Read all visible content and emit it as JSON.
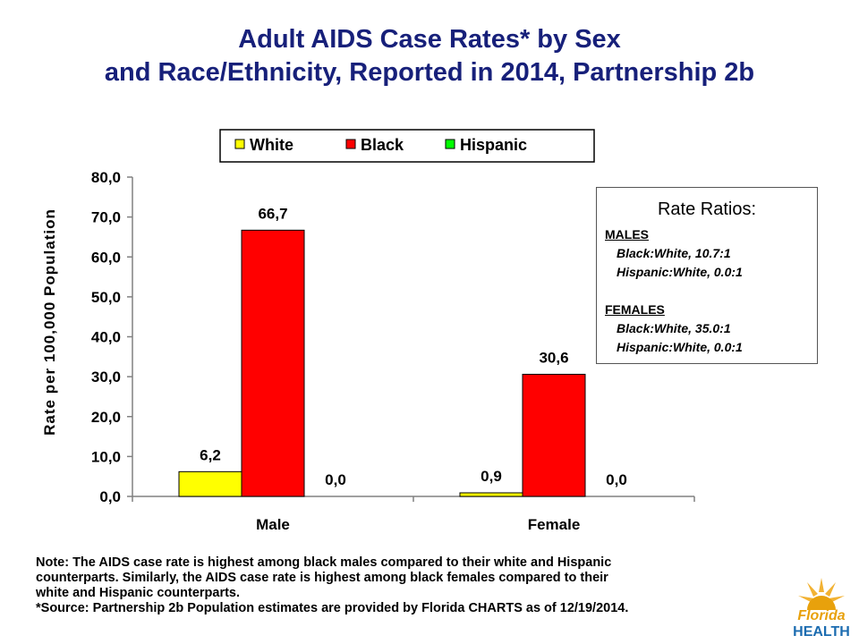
{
  "title": {
    "line1": "Adult AIDS Case Rates* by Sex",
    "line2": "and Race/Ethnicity, Reported in 2014, Partnership 2b"
  },
  "chart_data": {
    "type": "bar",
    "categories": [
      "Male",
      "Female"
    ],
    "series": [
      {
        "name": "White",
        "values": [
          6.2,
          0.9
        ],
        "labels": [
          "6,2",
          "0,9"
        ],
        "color": "#ffff00"
      },
      {
        "name": "Black",
        "values": [
          66.7,
          30.6
        ],
        "labels": [
          "66,7",
          "30,6"
        ],
        "color": "#ff0000"
      },
      {
        "name": "Hispanic",
        "values": [
          0.0,
          0.0
        ],
        "labels": [
          "0,0",
          "0,0"
        ],
        "color": "#00ff00"
      }
    ],
    "ylabel": "Rate per 100,000 Population",
    "xlabel": "",
    "ylim": [
      0,
      80
    ],
    "yticks": [
      0,
      10,
      20,
      30,
      40,
      50,
      60,
      70,
      80
    ],
    "ytick_labels": [
      "0,0",
      "10,0",
      "20,0",
      "30,0",
      "40,0",
      "50,0",
      "60,0",
      "70,0",
      "80,0"
    ],
    "grid": false,
    "legend_position": "top"
  },
  "rate_ratios": {
    "title": "Rate Ratios:",
    "males_heading": "MALES",
    "males_lines": [
      "Black:White, 10.7:1",
      "Hispanic:White, 0.0:1"
    ],
    "females_heading": "FEMALES",
    "females_lines": [
      "Black:White, 35.0:1",
      "Hispanic:White, 0.0:1"
    ]
  },
  "note": {
    "line1": "Note:  The AIDS case rate is highest among black males compared to their white and Hispanic",
    "line2": "counterparts.  Similarly, the AIDS case rate is highest among black females compared to their",
    "line3": "white and Hispanic counterparts.",
    "line4": "*Source: Partnership 2b Population estimates are provided by Florida CHARTS as of 12/19/2014."
  },
  "logo": {
    "line1": "Florida",
    "line2": "HEALTH",
    "icon": "florida-sun-icon",
    "colors": {
      "orange": "#e8a10c",
      "blue": "#1c6cb0"
    }
  },
  "colors": {
    "title": "#17207a",
    "axis": "#808080"
  }
}
